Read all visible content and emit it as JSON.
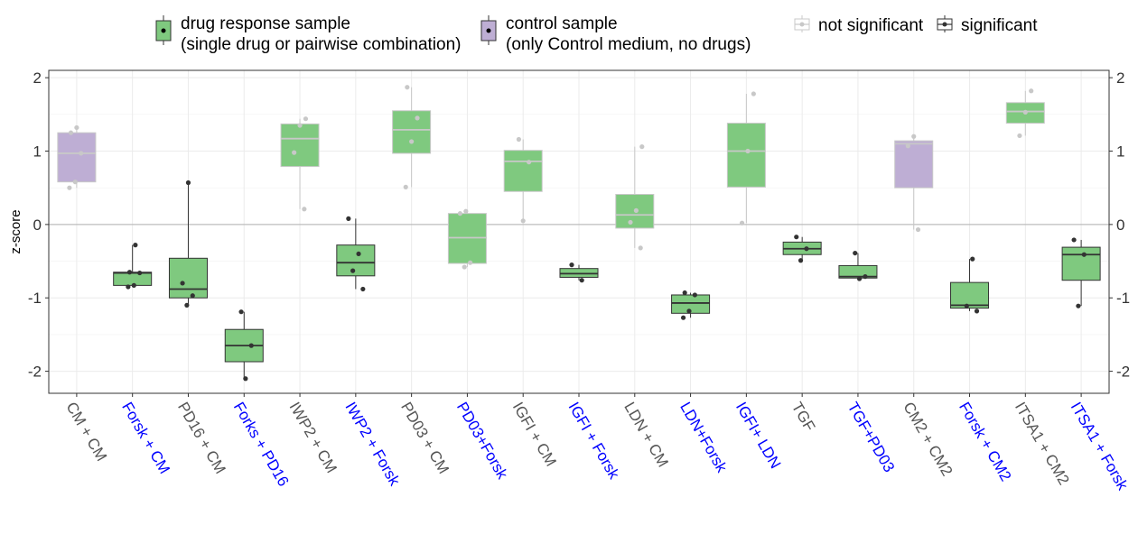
{
  "chart_data": {
    "type": "box",
    "ylabel": "z-score",
    "ylim": [
      -2.3,
      2.1
    ],
    "yticks": [
      -2,
      -1,
      0,
      1,
      2
    ],
    "grid": true,
    "reference_line_y": 0,
    "legend_position": "top",
    "legend": {
      "drug": {
        "line1": "drug response sample",
        "line2": "(single drug or pairwise combination)",
        "color": "#7fc97f"
      },
      "control": {
        "line1": "control sample",
        "line2": "(only Control medium, no drugs)",
        "color": "#beaed4"
      },
      "not_significant": {
        "label": "not significant",
        "color": "#c8c8c8"
      },
      "significant": {
        "label": "significant",
        "color": "#333333"
      }
    },
    "colors": {
      "drug_fill": "#7fc97f",
      "control_fill": "#beaed4",
      "significant": "#333333",
      "not_significant": "#c8c8c8",
      "label_control": "#555555",
      "label_drug": "#0000ff"
    },
    "categories": [
      {
        "label": "CM + CM",
        "group": "control",
        "significant": false,
        "label_color": "#555555",
        "box": {
          "q1": 0.58,
          "median": 0.97,
          "q3": 1.25,
          "whisker_low": 0.5,
          "whisker_high": 1.32
        },
        "points": [
          0.5,
          0.58,
          0.97,
          1.25,
          1.32
        ]
      },
      {
        "label": "Forsk + CM",
        "group": "drug",
        "significant": true,
        "label_color": "#0000ff",
        "box": {
          "q1": -0.83,
          "median": -0.66,
          "q3": -0.65,
          "whisker_low": -0.85,
          "whisker_high": -0.28
        },
        "points": [
          -0.85,
          -0.83,
          -0.66,
          -0.65,
          -0.28
        ]
      },
      {
        "label": "PD16 + CM",
        "group": "drug",
        "significant": true,
        "label_color": "#555555",
        "box": {
          "q1": -1.0,
          "median": -0.88,
          "q3": -0.46,
          "whisker_low": -1.1,
          "whisker_high": 0.57
        },
        "points": [
          -1.1,
          -0.97,
          -0.8,
          0.57
        ]
      },
      {
        "label": "Forks + PD16",
        "group": "drug",
        "significant": true,
        "label_color": "#0000ff",
        "box": {
          "q1": -1.87,
          "median": -1.65,
          "q3": -1.43,
          "whisker_low": -2.1,
          "whisker_high": -1.19
        },
        "points": [
          -2.1,
          -1.65,
          -1.19
        ]
      },
      {
        "label": "IWP2 + CM",
        "group": "drug",
        "significant": false,
        "label_color": "#555555",
        "box": {
          "q1": 0.79,
          "median": 1.17,
          "q3": 1.37,
          "whisker_low": 0.21,
          "whisker_high": 1.44
        },
        "points": [
          0.21,
          0.98,
          1.35,
          1.44
        ]
      },
      {
        "label": "IWP2  + Forsk",
        "group": "drug",
        "significant": true,
        "label_color": "#0000ff",
        "box": {
          "q1": -0.7,
          "median": -0.52,
          "q3": -0.28,
          "whisker_low": -0.88,
          "whisker_high": 0.08
        },
        "points": [
          -0.88,
          -0.63,
          -0.4,
          0.08
        ]
      },
      {
        "label": "PD03 + CM",
        "group": "drug",
        "significant": false,
        "label_color": "#555555",
        "box": {
          "q1": 0.97,
          "median": 1.29,
          "q3": 1.55,
          "whisker_low": 0.51,
          "whisker_high": 1.87
        },
        "points": [
          0.51,
          1.13,
          1.45,
          1.87
        ]
      },
      {
        "label": "PD03+Forsk",
        "group": "drug",
        "significant": false,
        "label_color": "#0000ff",
        "box": {
          "q1": -0.53,
          "median": -0.18,
          "q3": 0.15,
          "whisker_low": -0.58,
          "whisker_high": 0.18
        },
        "points": [
          -0.58,
          -0.52,
          0.15,
          0.18
        ]
      },
      {
        "label": "IGFI + CM",
        "group": "drug",
        "significant": false,
        "label_color": "#555555",
        "box": {
          "q1": 0.45,
          "median": 0.86,
          "q3": 1.01,
          "whisker_low": 0.05,
          "whisker_high": 1.16
        },
        "points": [
          0.05,
          0.85,
          1.16
        ]
      },
      {
        "label": "IGFI + Forsk",
        "group": "drug",
        "significant": true,
        "label_color": "#0000ff",
        "box": {
          "q1": -0.72,
          "median": -0.67,
          "q3": -0.6,
          "whisker_low": -0.76,
          "whisker_high": -0.55
        },
        "points": [
          -0.76,
          -0.55
        ]
      },
      {
        "label": "LDN + CM",
        "group": "drug",
        "significant": false,
        "label_color": "#555555",
        "box": {
          "q1": -0.05,
          "median": 0.13,
          "q3": 0.41,
          "whisker_low": -0.32,
          "whisker_high": 1.06
        },
        "points": [
          -0.32,
          0.03,
          0.19,
          1.06
        ]
      },
      {
        "label": "LDN+Forsk",
        "group": "drug",
        "significant": true,
        "label_color": "#0000ff",
        "box": {
          "q1": -1.21,
          "median": -1.07,
          "q3": -0.96,
          "whisker_low": -1.27,
          "whisker_high": -0.93
        },
        "points": [
          -1.27,
          -1.18,
          -0.96,
          -0.93
        ]
      },
      {
        "label": "IGFI+ LDN",
        "group": "drug",
        "significant": false,
        "label_color": "#0000ff",
        "box": {
          "q1": 0.51,
          "median": 1.0,
          "q3": 1.38,
          "whisker_low": 0.02,
          "whisker_high": 1.78
        },
        "points": [
          0.02,
          1.0,
          1.78
        ]
      },
      {
        "label": "TGF",
        "group": "drug",
        "significant": true,
        "label_color": "#555555",
        "box": {
          "q1": -0.41,
          "median": -0.33,
          "q3": -0.24,
          "whisker_low": -0.49,
          "whisker_high": -0.17
        },
        "points": [
          -0.49,
          -0.33,
          -0.17
        ]
      },
      {
        "label": "TGF+PD03",
        "group": "drug",
        "significant": true,
        "label_color": "#0000ff",
        "box": {
          "q1": -0.73,
          "median": -0.71,
          "q3": -0.56,
          "whisker_low": -0.74,
          "whisker_high": -0.39
        },
        "points": [
          -0.74,
          -0.71,
          -0.39
        ]
      },
      {
        "label": "CM2 + CM2",
        "group": "control",
        "significant": false,
        "label_color": "#555555",
        "box": {
          "q1": 0.5,
          "median": 1.1,
          "q3": 1.14,
          "whisker_low": -0.07,
          "whisker_high": 1.2
        },
        "points": [
          -0.07,
          1.07,
          1.2
        ]
      },
      {
        "label": "Forsk + CM2",
        "group": "drug",
        "significant": true,
        "label_color": "#0000ff",
        "box": {
          "q1": -1.14,
          "median": -1.1,
          "q3": -0.79,
          "whisker_low": -1.18,
          "whisker_high": -0.47
        },
        "points": [
          -1.18,
          -1.11,
          -0.47
        ]
      },
      {
        "label": "ITSA1 + CM2",
        "group": "drug",
        "significant": false,
        "label_color": "#555555",
        "box": {
          "q1": 1.38,
          "median": 1.54,
          "q3": 1.66,
          "whisker_low": 1.21,
          "whisker_high": 1.82
        },
        "points": [
          1.21,
          1.53,
          1.82
        ]
      },
      {
        "label": "ITSA1 + Forsk",
        "group": "drug",
        "significant": true,
        "label_color": "#0000ff",
        "box": {
          "q1": -0.76,
          "median": -0.41,
          "q3": -0.31,
          "whisker_low": -1.11,
          "whisker_high": -0.21
        },
        "points": [
          -1.11,
          -0.41,
          -0.21
        ]
      }
    ]
  }
}
